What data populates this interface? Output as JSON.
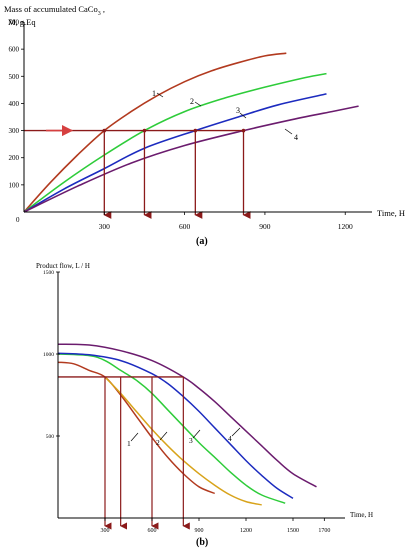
{
  "colors": {
    "axis": "#000000",
    "guide": "#8b1a1a",
    "arrow": "#d64040",
    "c1": "#b23a1f",
    "c2": "#2ecc3a",
    "c3": "#1c2bbf",
    "c4": "#6b1c6e",
    "c_extra": "#d8a31a"
  },
  "chart_data": [
    {
      "type": "line",
      "panel_label": "(a)",
      "ylabel_line1": "Mass of accumulated CaCo",
      "ylabel_sub": "3",
      "ylabel_line2": "M, g.Eq",
      "xlabel": "Time, H",
      "xlim": [
        0,
        1300
      ],
      "ylim": [
        0,
        700
      ],
      "xticks": [
        300,
        600,
        900,
        1200
      ],
      "yticks": [
        100,
        200,
        300,
        400,
        500,
        600,
        700
      ],
      "origin_label": "0",
      "series": [
        {
          "name": "1",
          "x": [
            0,
            100,
            200,
            300,
            400,
            500,
            600,
            700,
            800,
            900,
            980
          ],
          "y": [
            0,
            110,
            210,
            300,
            370,
            430,
            480,
            520,
            550,
            575,
            585
          ]
        },
        {
          "name": "2",
          "x": [
            0,
            150,
            300,
            450,
            600,
            750,
            900,
            1050,
            1130
          ],
          "y": [
            0,
            110,
            210,
            300,
            370,
            420,
            460,
            495,
            510
          ]
        },
        {
          "name": "3",
          "x": [
            0,
            150,
            300,
            450,
            640,
            800,
            950,
            1130
          ],
          "y": [
            0,
            85,
            160,
            235,
            300,
            350,
            395,
            435
          ]
        },
        {
          "name": "4",
          "x": [
            0,
            200,
            400,
            600,
            820,
            1000,
            1150,
            1250
          ],
          "y": [
            0,
            95,
            180,
            245,
            300,
            340,
            370,
            390
          ]
        }
      ],
      "guide_level": 300,
      "guide_drops_x": [
        300,
        450,
        640,
        820
      ]
    },
    {
      "type": "line",
      "panel_label": "(b)",
      "ylabel": "Product flow, L / H",
      "xlabel": "Time, H",
      "xlim": [
        0,
        1800
      ],
      "ylim": [
        0,
        1500
      ],
      "xticks": [
        300,
        600,
        900,
        1200,
        1500,
        1700
      ],
      "yticks": [
        500,
        1000,
        1500
      ],
      "series": [
        {
          "name": "1",
          "x": [
            0,
            100,
            200,
            300,
            400,
            500,
            600,
            700,
            800,
            900,
            1000
          ],
          "y": [
            950,
            940,
            900,
            860,
            750,
            620,
            490,
            370,
            270,
            190,
            150
          ]
        },
        {
          "name": "2",
          "x": [
            0,
            200,
            300,
            400,
            500,
            600,
            700,
            800,
            900,
            1000,
            1100,
            1200,
            1300,
            1450
          ],
          "y": [
            1000,
            990,
            960,
            900,
            840,
            760,
            660,
            560,
            460,
            370,
            280,
            200,
            140,
            90
          ]
        },
        {
          "name": "3",
          "x": [
            0,
            200,
            400,
            600,
            700,
            800,
            900,
            1000,
            1100,
            1200,
            1300,
            1400,
            1500
          ],
          "y": [
            1005,
            995,
            960,
            880,
            820,
            740,
            650,
            550,
            450,
            350,
            260,
            180,
            120
          ]
        },
        {
          "name": "4",
          "x": [
            0,
            200,
            400,
            600,
            800,
            900,
            1000,
            1100,
            1200,
            1300,
            1400,
            1500,
            1650
          ],
          "y": [
            1060,
            1055,
            1020,
            960,
            860,
            790,
            710,
            620,
            530,
            440,
            350,
            270,
            190
          ]
        },
        {
          "name": "",
          "x": [
            300,
            400,
            500,
            600,
            700,
            800,
            900,
            1000,
            1100,
            1200,
            1300
          ],
          "y": [
            860,
            760,
            650,
            540,
            440,
            350,
            270,
            200,
            140,
            100,
            80
          ]
        }
      ],
      "guide_level": 860,
      "guide_drops_x": [
        300,
        400,
        600,
        800
      ]
    }
  ]
}
